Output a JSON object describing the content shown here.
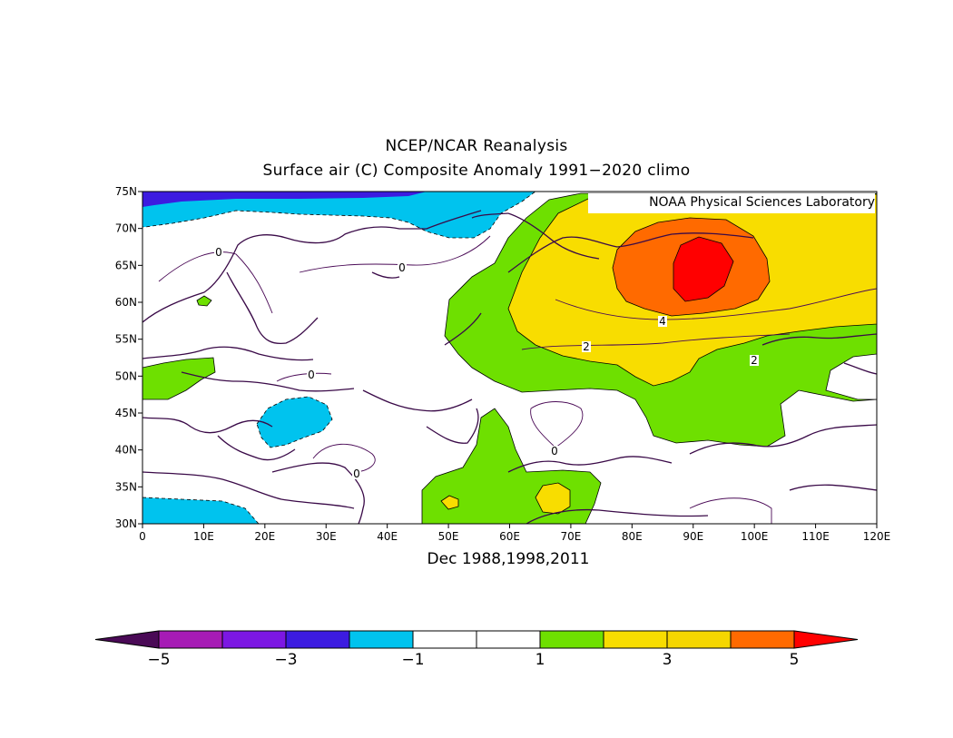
{
  "title": "NCEP/NCAR Reanalysis",
  "subtitle": "Surface air (C) Composite Anomaly 1991−2020 climo",
  "bottom_label": "Dec 1988,1998,2011",
  "credit": "NOAA Physical Sciences Laboratory",
  "map": {
    "lon_range": [
      0,
      120
    ],
    "lat_range": [
      30,
      75
    ],
    "lat_ticks": [
      "30N",
      "35N",
      "40N",
      "45N",
      "50N",
      "55N",
      "60N",
      "65N",
      "70N",
      "75N"
    ],
    "lon_ticks": [
      "0",
      "10E",
      "20E",
      "30E",
      "40E",
      "50E",
      "60E",
      "70E",
      "80E",
      "90E",
      "100E",
      "110E",
      "120E"
    ],
    "contour_labels": [
      "0",
      "0",
      "0",
      "0",
      "0",
      "2",
      "2",
      "4"
    ]
  },
  "colorbar": {
    "levels": [
      -5,
      -4,
      -3,
      -2,
      -1,
      0,
      1,
      2,
      3,
      4,
      5
    ],
    "labels": [
      "−5",
      "−3",
      "−1",
      "1",
      "3",
      "5"
    ],
    "colors": {
      "below": "#4a0a56",
      "c_m5": "#a61bb5",
      "c_m4": "#7c17e3",
      "c_m3": "#3c1be0",
      "c_m2": "#00c3ee",
      "c_m1": "#ffffff",
      "c_0": "#ffffff",
      "c_1": "#6ee000",
      "c_2": "#f8dd00",
      "c_3": "#f5d600",
      "c_4": "#ff6a00",
      "above": "#ff0000"
    }
  }
}
